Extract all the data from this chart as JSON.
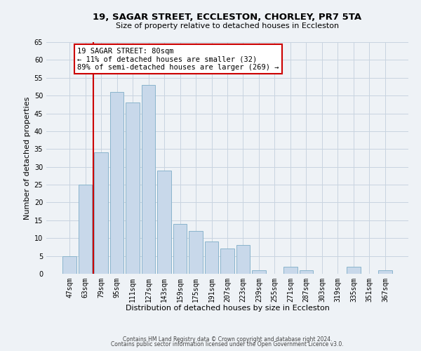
{
  "title": "19, SAGAR STREET, ECCLESTON, CHORLEY, PR7 5TA",
  "subtitle": "Size of property relative to detached houses in Eccleston",
  "xlabel": "Distribution of detached houses by size in Eccleston",
  "ylabel": "Number of detached properties",
  "bar_labels": [
    "47sqm",
    "63sqm",
    "79sqm",
    "95sqm",
    "111sqm",
    "127sqm",
    "143sqm",
    "159sqm",
    "175sqm",
    "191sqm",
    "207sqm",
    "223sqm",
    "239sqm",
    "255sqm",
    "271sqm",
    "287sqm",
    "303sqm",
    "319sqm",
    "335sqm",
    "351sqm",
    "367sqm"
  ],
  "bar_values": [
    5,
    25,
    34,
    51,
    48,
    53,
    29,
    14,
    12,
    9,
    7,
    8,
    1,
    0,
    2,
    1,
    0,
    0,
    2,
    0,
    1
  ],
  "bar_color": "#c8d8ea",
  "bar_edge_color": "#8ab4cc",
  "grid_color": "#c8d4e0",
  "background_color": "#eef2f6",
  "annotation_line1": "19 SAGAR STREET: 80sqm",
  "annotation_line2": "← 11% of detached houses are smaller (32)",
  "annotation_line3": "89% of semi-detached houses are larger (269) →",
  "annotation_box_color": "#ffffff",
  "annotation_box_edge_color": "#cc0000",
  "vline_color": "#cc0000",
  "vline_x_index": 2,
  "ylim": [
    0,
    65
  ],
  "yticks": [
    0,
    5,
    10,
    15,
    20,
    25,
    30,
    35,
    40,
    45,
    50,
    55,
    60,
    65
  ],
  "footer_line1": "Contains HM Land Registry data © Crown copyright and database right 2024.",
  "footer_line2": "Contains public sector information licensed under the Open Government Licence v3.0.",
  "title_fontsize": 9.5,
  "subtitle_fontsize": 8,
  "axis_label_fontsize": 8,
  "tick_fontsize": 7,
  "annotation_fontsize": 7.5,
  "footer_fontsize": 5.5
}
